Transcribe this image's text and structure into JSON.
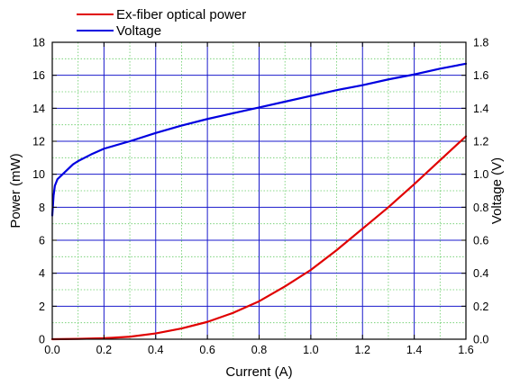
{
  "chart_data": {
    "type": "line",
    "title": "",
    "xlabel": "Current (A)",
    "ylabel": "Power (mW)",
    "y2label": "Voltage (V)",
    "xlim": [
      0,
      1.6
    ],
    "ylim": [
      0,
      18
    ],
    "y2lim": [
      0,
      1.8
    ],
    "x_ticks": [
      "0.0",
      "0.2",
      "0.4",
      "0.6",
      "0.8",
      "1.0",
      "1.2",
      "1.4",
      "1.6"
    ],
    "y_ticks": [
      "0",
      "2",
      "4",
      "6",
      "8",
      "10",
      "12",
      "14",
      "16",
      "18"
    ],
    "y2_ticks": [
      "0.0",
      "0.2",
      "0.4",
      "0.6",
      "0.8",
      "1.0",
      "1.2",
      "1.4",
      "1.6",
      "1.8"
    ],
    "grid": true,
    "legend_position": "top-left, above plot",
    "colors": {
      "power": "#e00000",
      "voltage": "#0000e0",
      "major_grid": "#1a1acc",
      "minor_grid": "#66cc66"
    },
    "series": [
      {
        "name": "Ex-fiber optical power",
        "axis": "left",
        "color": "#e00000",
        "x": [
          0.0,
          0.1,
          0.2,
          0.3,
          0.4,
          0.5,
          0.6,
          0.7,
          0.8,
          0.9,
          1.0,
          1.1,
          1.2,
          1.3,
          1.4,
          1.5,
          1.6
        ],
        "y": [
          0.0,
          0.02,
          0.06,
          0.15,
          0.35,
          0.65,
          1.05,
          1.6,
          2.3,
          3.2,
          4.2,
          5.4,
          6.7,
          8.0,
          9.4,
          10.85,
          12.3
        ]
      },
      {
        "name": "Voltage",
        "axis": "right",
        "color": "#0000e0",
        "x": [
          0.0,
          0.005,
          0.01,
          0.02,
          0.04,
          0.06,
          0.08,
          0.1,
          0.15,
          0.2,
          0.3,
          0.4,
          0.5,
          0.6,
          0.7,
          0.8,
          0.9,
          1.0,
          1.1,
          1.2,
          1.3,
          1.4,
          1.5,
          1.6
        ],
        "y": [
          0.75,
          0.87,
          0.93,
          0.97,
          1.0,
          1.03,
          1.06,
          1.08,
          1.12,
          1.155,
          1.2,
          1.25,
          1.295,
          1.335,
          1.37,
          1.405,
          1.44,
          1.475,
          1.51,
          1.54,
          1.575,
          1.605,
          1.64,
          1.67
        ]
      }
    ]
  }
}
